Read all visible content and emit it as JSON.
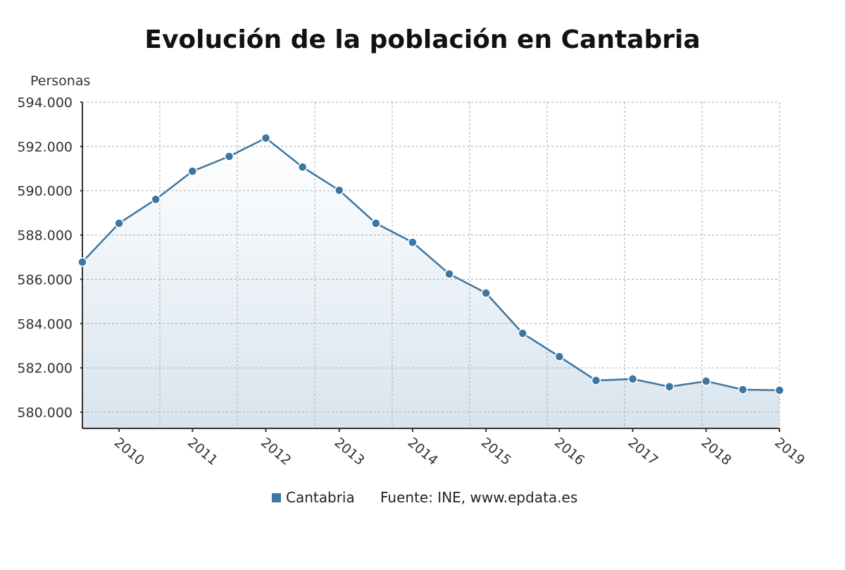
{
  "chart_data": {
    "type": "area",
    "title": "Evolución de la población en Cantabria",
    "ylabel": "Personas",
    "xlabel": "",
    "ylim": [
      579300,
      594000
    ],
    "yticks": [
      580000,
      582000,
      584000,
      586000,
      588000,
      590000,
      592000,
      594000
    ],
    "ytick_labels": [
      "580.000",
      "582.000",
      "584.000",
      "586.000",
      "588.000",
      "590.000",
      "592.000",
      "594.000"
    ],
    "xtick_labels": [
      "2010",
      "2011",
      "2012",
      "2013",
      "2014",
      "2015",
      "2016",
      "2017",
      "2018",
      "2019"
    ],
    "grid": true,
    "series": [
      {
        "name": "Cantabria",
        "color": "#3d76a0",
        "values": [
          586780,
          588530,
          589610,
          590880,
          591550,
          592380,
          591070,
          590020,
          588530,
          587670,
          586240,
          585380,
          583560,
          582510,
          581430,
          581500,
          581150,
          581400,
          581020,
          580990
        ]
      }
    ],
    "legend_position": "bottom",
    "source": "Fuente: INE, www.epdata.es"
  }
}
